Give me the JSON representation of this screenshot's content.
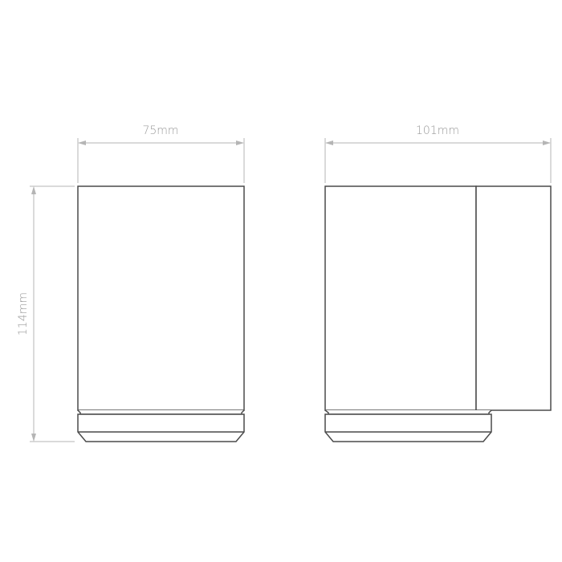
{
  "drawing": {
    "front_view": {
      "width_label": "75mm",
      "height_label": "114mm"
    },
    "side_view": {
      "width_label": "101mm"
    },
    "colors": {
      "outline": "#4a4a4a",
      "dimension": "#b5b5b5",
      "dimension_text": "#9a9a9a"
    }
  }
}
